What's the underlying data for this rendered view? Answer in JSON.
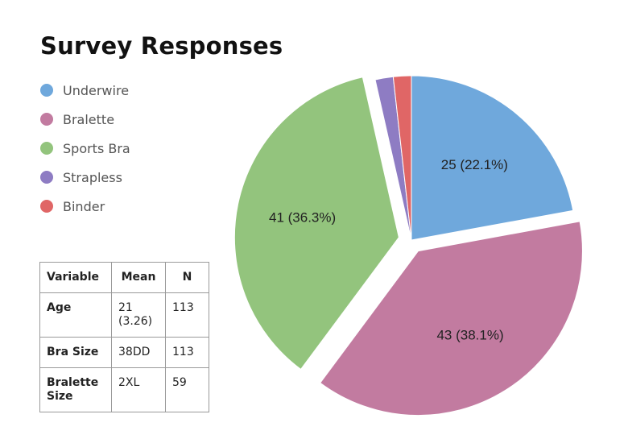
{
  "page": {
    "title": "Survey Responses"
  },
  "chart_data": {
    "type": "pie",
    "title": "Survey Responses",
    "legend_position": "left",
    "slices": [
      {
        "name": "Underwire",
        "value": 25,
        "percent": 22.1,
        "color": "#6fa8dc",
        "exploded": false,
        "label": "25 (22.1%)"
      },
      {
        "name": "Bralette",
        "value": 43,
        "percent": 38.1,
        "color": "#c27ba0",
        "exploded": true,
        "label": "43 (38.1%)"
      },
      {
        "name": "Sports Bra",
        "value": 41,
        "percent": 36.3,
        "color": "#93c47d",
        "exploded": true,
        "label": "41 (36.3%)"
      },
      {
        "name": "Strapless",
        "value": 2,
        "percent": 1.8,
        "color": "#8e7cc3",
        "exploded": false,
        "label": ""
      },
      {
        "name": "Binder",
        "value": 2,
        "percent": 1.8,
        "color": "#e06666",
        "exploded": false,
        "label": ""
      }
    ]
  },
  "stats_table": {
    "headers": [
      "Variable",
      "Mean",
      "N"
    ],
    "rows": [
      {
        "variable": "Age",
        "mean": "21 (3.26)",
        "n": "113"
      },
      {
        "variable": "Bra Size",
        "mean": "38DD",
        "n": "113"
      },
      {
        "variable": "Bralette Size",
        "mean": "2XL",
        "n": "59"
      }
    ]
  }
}
